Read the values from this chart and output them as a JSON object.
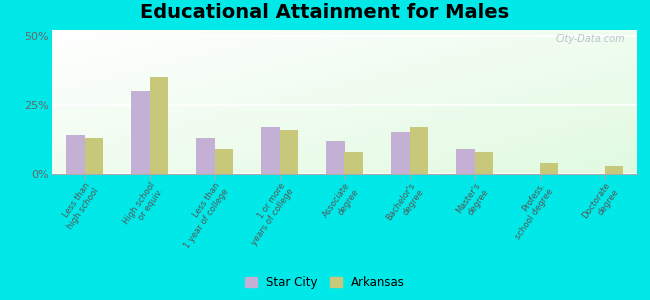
{
  "title": "Educational Attainment for Males",
  "categories": [
    "Less than\nhigh school",
    "High school\nor equiv.",
    "Less than\n1 year of college",
    "1 or more\nyears of college",
    "Associate\ndegree",
    "Bachelor's\ndegree",
    "Master's\ndegree",
    "Profess.\nschool degree",
    "Doctorate\ndegree"
  ],
  "star_city": [
    14,
    30,
    13,
    17,
    12,
    15,
    9,
    0,
    0
  ],
  "arkansas": [
    13,
    35,
    9,
    16,
    8,
    17,
    8,
    4,
    3
  ],
  "star_city_color": "#c5b0d5",
  "arkansas_color": "#c8c87a",
  "background_outer": "#00e8e8",
  "yticks": [
    0,
    25,
    50
  ],
  "ylim": [
    0,
    52
  ],
  "title_fontsize": 14,
  "legend_labels": [
    "Star City",
    "Arkansas"
  ],
  "watermark": "City-Data.com"
}
